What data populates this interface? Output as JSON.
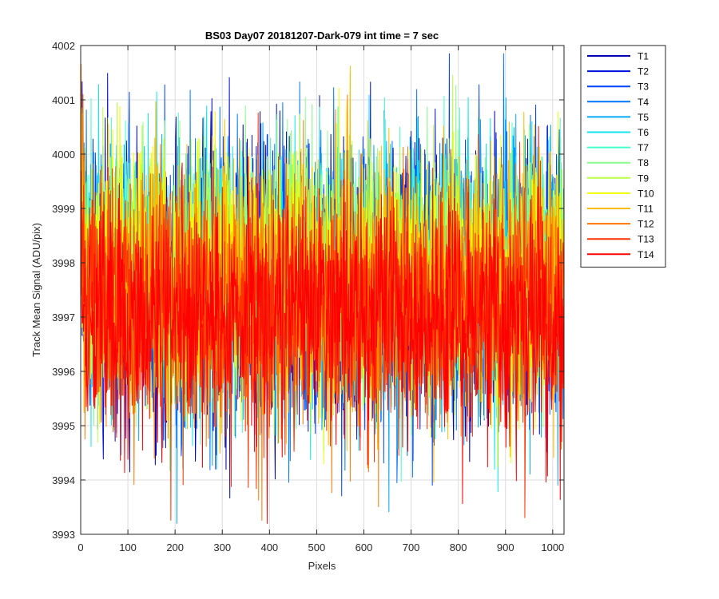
{
  "chart_data": {
    "type": "line",
    "title": "BS03 Day07 20181207-Dark-079 int time = 7 sec",
    "xlabel": "Pixels",
    "ylabel": "Track Mean Signal (ADU/pix)",
    "xlim": [
      0,
      1024
    ],
    "ylim": [
      3993,
      4002
    ],
    "xticks": [
      0,
      100,
      200,
      300,
      400,
      500,
      600,
      700,
      800,
      900,
      1000
    ],
    "yticks": [
      3993,
      3994,
      3995,
      3996,
      3997,
      3998,
      3999,
      4000,
      4001,
      4002
    ],
    "grid": true,
    "legend_position": "outside-top-right",
    "n_pixels": 1024,
    "series_note_values": "Each series is per-pixel noise around a mean; approximate statistics read from the plot.",
    "series": [
      {
        "name": "T1",
        "color": "#0000b3",
        "mean": 3997.6,
        "std": 1.25
      },
      {
        "name": "T2",
        "color": "#0011dd",
        "mean": 3997.6,
        "std": 1.25
      },
      {
        "name": "T3",
        "color": "#0044ff",
        "mean": 3997.6,
        "std": 1.2
      },
      {
        "name": "T4",
        "color": "#0077ff",
        "mean": 3997.7,
        "std": 1.2
      },
      {
        "name": "T5",
        "color": "#00aaff",
        "mean": 3997.7,
        "std": 1.2
      },
      {
        "name": "T6",
        "color": "#11e6f0",
        "mean": 3997.8,
        "std": 1.15
      },
      {
        "name": "T7",
        "color": "#44ffcc",
        "mean": 3997.8,
        "std": 1.15
      },
      {
        "name": "T8",
        "color": "#88ff88",
        "mean": 3997.8,
        "std": 1.15
      },
      {
        "name": "T9",
        "color": "#bbff44",
        "mean": 3997.8,
        "std": 1.15
      },
      {
        "name": "T10",
        "color": "#eeff00",
        "mean": 3997.7,
        "std": 1.15
      },
      {
        "name": "T11",
        "color": "#ffbb00",
        "mean": 3997.5,
        "std": 1.15
      },
      {
        "name": "T12",
        "color": "#ff7700",
        "mean": 3997.3,
        "std": 1.15
      },
      {
        "name": "T13",
        "color": "#ff3300",
        "mean": 3997.2,
        "std": 1.1
      },
      {
        "name": "T14",
        "color": "#ff0000",
        "mean": 3997.0,
        "std": 1.1
      }
    ]
  }
}
